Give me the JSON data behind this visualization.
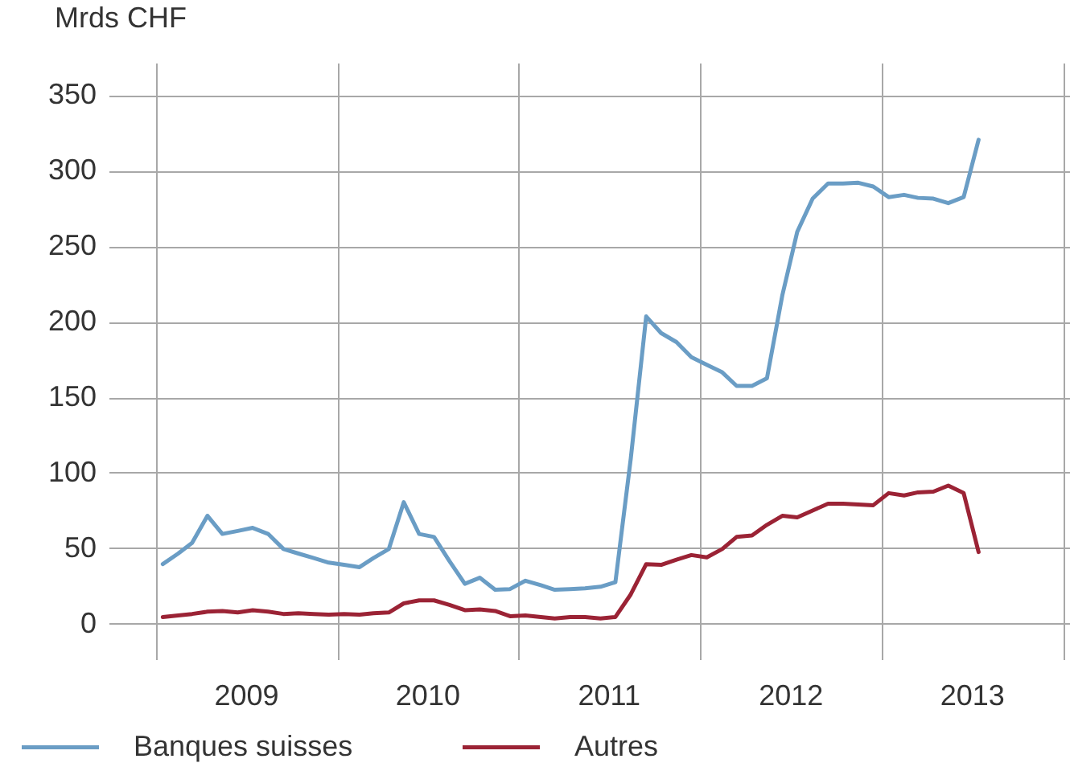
{
  "chart_data": {
    "type": "line",
    "ylabel": "Mrds CHF",
    "x": [
      "2009-01-15",
      "2009-02-15",
      "2009-03-15",
      "2009-04-15",
      "2009-05-15",
      "2009-06-15",
      "2009-07-15",
      "2009-08-15",
      "2009-09-15",
      "2009-10-15",
      "2009-11-15",
      "2009-12-15",
      "2010-01-15",
      "2010-02-15",
      "2010-03-15",
      "2010-04-15",
      "2010-05-15",
      "2010-06-15",
      "2010-07-15",
      "2010-08-15",
      "2010-09-15",
      "2010-10-15",
      "2010-11-15",
      "2010-12-15",
      "2011-01-15",
      "2011-02-15",
      "2011-03-15",
      "2011-04-15",
      "2011-05-15",
      "2011-06-15",
      "2011-07-15",
      "2011-08-15",
      "2011-09-15",
      "2011-10-15",
      "2011-11-15",
      "2011-12-15",
      "2012-01-15",
      "2012-02-15",
      "2012-03-15",
      "2012-04-15",
      "2012-05-15",
      "2012-06-15",
      "2012-07-15",
      "2012-08-15",
      "2012-09-15",
      "2012-10-15",
      "2012-11-15",
      "2012-12-15",
      "2013-01-15",
      "2013-02-15",
      "2013-03-15",
      "2013-04-15",
      "2013-05-15",
      "2013-06-15",
      "2013-07-15"
    ],
    "series": [
      {
        "name": "Banques suisses",
        "color": "#6a9dc5",
        "values": [
          40,
          47,
          54,
          72,
          60,
          62,
          64,
          60,
          50,
          47,
          44,
          41,
          39.5,
          38,
          44,
          50,
          81,
          60,
          58,
          42,
          27,
          31,
          23,
          23.5,
          29,
          26,
          23,
          23.5,
          24,
          25,
          28,
          110,
          204,
          193,
          187,
          177,
          172,
          167,
          158,
          158,
          163,
          218,
          260,
          282,
          292,
          292,
          292.5,
          290,
          283,
          284.5,
          282.5,
          282,
          279,
          283,
          321
        ]
      },
      {
        "name": "Autres",
        "color": "#9b2335",
        "values": [
          5,
          6,
          7,
          8.5,
          9,
          8,
          9.5,
          8.5,
          7,
          7.5,
          7,
          6.5,
          7,
          6.5,
          7.5,
          8,
          14,
          16,
          16,
          13,
          9.5,
          10,
          9,
          5.5,
          6,
          5,
          4,
          5,
          5,
          4,
          5,
          20,
          40,
          39.5,
          43,
          46,
          44.5,
          50,
          58,
          59,
          66,
          72,
          71,
          75.5,
          80,
          80,
          79.5,
          79,
          87,
          85.5,
          87.5,
          88,
          92,
          87,
          48
        ]
      }
    ],
    "xlim": [
      "2008-11-01",
      "2014-01-15"
    ],
    "xticks": [
      {
        "value": "2009-01-01",
        "label": null
      },
      {
        "value": "2009-07-01",
        "label": "2009"
      },
      {
        "value": "2010-01-01",
        "label": null
      },
      {
        "value": "2010-07-01",
        "label": "2010"
      },
      {
        "value": "2011-01-01",
        "label": null
      },
      {
        "value": "2011-07-01",
        "label": "2011"
      },
      {
        "value": "2012-01-01",
        "label": null
      },
      {
        "value": "2012-07-01",
        "label": "2012"
      },
      {
        "value": "2013-01-01",
        "label": null
      },
      {
        "value": "2013-07-01",
        "label": "2013"
      },
      {
        "value": "2014-01-01",
        "label": null
      }
    ],
    "ylim": [
      -23,
      372
    ],
    "yticks": [
      0,
      50,
      100,
      150,
      200,
      250,
      300,
      350
    ],
    "grid": true,
    "legend": "bottom"
  }
}
